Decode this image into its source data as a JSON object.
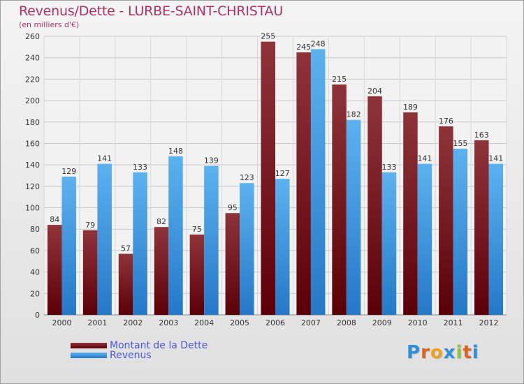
{
  "header": {
    "title": "Revenus/Dette - LURBE-SAINT-CHRISTAU",
    "subtitle": "(en milliers d'€)"
  },
  "legend": {
    "debt_label": "Montant de la Dette",
    "revenue_label": "Revenus"
  },
  "logo": {
    "text": "Proxiti"
  },
  "colors": {
    "title": "#b03060",
    "debt": "#7a1f24",
    "revenue": "#4da6e8",
    "legend_text": "#4a55e0"
  },
  "chart_data": {
    "type": "bar",
    "title": "Revenus/Dette - LURBE-SAINT-CHRISTAU",
    "subtitle": "(en milliers d'€)",
    "xlabel": "",
    "ylabel": "",
    "categories": [
      "2000",
      "2001",
      "2002",
      "2003",
      "2004",
      "2005",
      "2006",
      "2007",
      "2008",
      "2009",
      "2010",
      "2011",
      "2012"
    ],
    "series": [
      {
        "name": "Montant de la Dette",
        "values": [
          84,
          79,
          57,
          82,
          75,
          95,
          255,
          245,
          215,
          204,
          189,
          176,
          163
        ]
      },
      {
        "name": "Revenus",
        "values": [
          129,
          141,
          133,
          148,
          139,
          123,
          127,
          248,
          182,
          133,
          141,
          155,
          141
        ]
      }
    ],
    "ylim": [
      0,
      260
    ],
    "yticks": [
      0,
      20,
      40,
      60,
      80,
      100,
      120,
      140,
      160,
      180,
      200,
      220,
      240,
      260
    ],
    "grid": true,
    "legend_position": "bottom-left"
  }
}
